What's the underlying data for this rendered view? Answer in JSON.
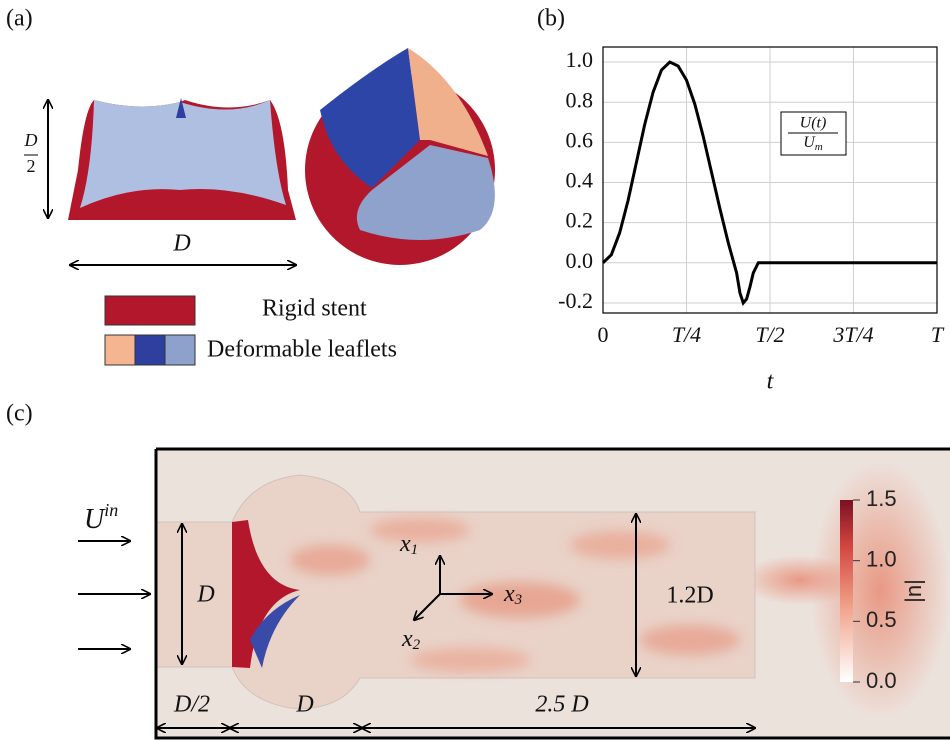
{
  "panel_a": {
    "label": "(a)",
    "height_label": {
      "numerator": "D",
      "denominator": "2"
    },
    "width_label": "D",
    "legend": [
      "Rigid stent",
      "Deformable leaflets"
    ]
  },
  "chart_data": {
    "type": "line",
    "label": "(b)",
    "xlabel": "t",
    "annotation": {
      "numerator": "U(t)",
      "denominator": {
        "base": "U",
        "sub": "m"
      }
    },
    "x": [
      0,
      0.025,
      0.05,
      0.075,
      0.1,
      0.125,
      0.15,
      0.175,
      0.2,
      0.225,
      0.25,
      0.275,
      0.3,
      0.325,
      0.35,
      0.375,
      0.4,
      0.41,
      0.42,
      0.43,
      0.44,
      0.45,
      0.465,
      0.5,
      1.0
    ],
    "values": [
      0,
      0.04,
      0.15,
      0.31,
      0.5,
      0.69,
      0.85,
      0.96,
      1.0,
      0.98,
      0.91,
      0.79,
      0.63,
      0.45,
      0.27,
      0.1,
      -0.05,
      -0.15,
      -0.2,
      -0.18,
      -0.12,
      -0.05,
      0,
      0,
      0
    ],
    "color": "#000000",
    "xlim": [
      0,
      1
    ],
    "ylim": [
      -0.25,
      1.075
    ],
    "xticks": [
      {
        "value": 0,
        "label": "0"
      },
      {
        "value": 0.25,
        "label": "T/4"
      },
      {
        "value": 0.5,
        "label": "T/2"
      },
      {
        "value": 0.75,
        "label": "3T/4"
      },
      {
        "value": 1,
        "label": "T"
      }
    ],
    "yticks": [
      {
        "value": 1,
        "label": "1.0"
      },
      0.8,
      0.6,
      0.4,
      0.2,
      {
        "value": 0,
        "label": "0.0"
      },
      -0.2
    ],
    "grid": true
  },
  "panel_c": {
    "label": "(c)",
    "inflow_label": {
      "base": "U",
      "sup": "in"
    },
    "inlet_diameter": "D",
    "axes": [
      {
        "base": "x",
        "sub": "1"
      },
      {
        "base": "x",
        "sub": "3"
      },
      {
        "base": "x",
        "sub": "2"
      }
    ],
    "outlet_diameter": "1.2D",
    "lengths": [
      "D/2",
      "D",
      "2.5 D"
    ],
    "colorbar": {
      "label": "|u|",
      "lim": [
        0,
        1.5
      ],
      "ticks": [
        1.5,
        {
          "value": 1,
          "label": "1.0"
        },
        0.5,
        {
          "value": 0,
          "label": "0.0"
        }
      ]
    }
  }
}
